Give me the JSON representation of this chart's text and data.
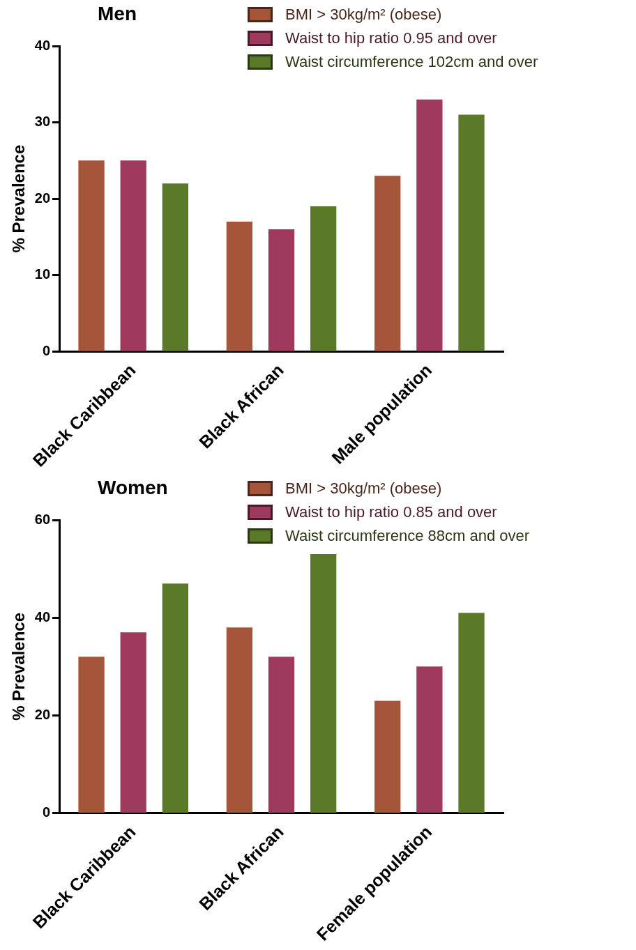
{
  "chart_data": [
    {
      "type": "bar",
      "title": "Men",
      "ylabel": "% Prevalence",
      "categories": [
        "Black Caribbean",
        "Black African",
        "Male population"
      ],
      "series": [
        {
          "name": "BMI > 30kg/m² (obese)",
          "color": "#a5553a",
          "values": [
            25,
            17,
            23
          ]
        },
        {
          "name": "Waist to hip ratio 0.95 and over",
          "color": "#9e3a5e",
          "values": [
            25,
            16,
            33
          ]
        },
        {
          "name": "Waist circumference 102cm and over",
          "color": "#5a7a2a",
          "values": [
            22,
            19,
            31
          ]
        }
      ],
      "ylim": [
        0,
        40
      ],
      "yticks": [
        0,
        10,
        20,
        30,
        40
      ],
      "grid": false,
      "legend": "top right"
    },
    {
      "type": "bar",
      "title": "Women",
      "ylabel": "% Prevalence",
      "categories": [
        "Black Caribbean",
        "Black African",
        "Female population"
      ],
      "series": [
        {
          "name": "BMI > 30kg/m² (obese)",
          "color": "#a5553a",
          "values": [
            32,
            38,
            23
          ]
        },
        {
          "name": "Waist to hip ratio 0.85 and over",
          "color": "#9e3a5e",
          "values": [
            37,
            32,
            30
          ]
        },
        {
          "name": "Waist circumference 88cm and over",
          "color": "#5a7a2a",
          "values": [
            47,
            53,
            41
          ]
        }
      ],
      "ylim": [
        0,
        60
      ],
      "yticks": [
        0,
        20,
        40,
        60
      ],
      "grid": false,
      "legend": "top right"
    }
  ]
}
